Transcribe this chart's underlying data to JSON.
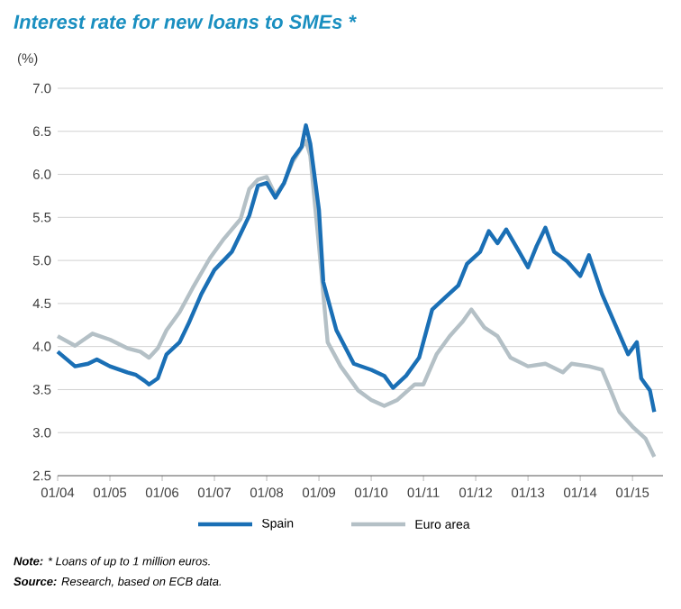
{
  "chart_data": {
    "type": "line",
    "title": "Interest rate for new loans to SMEs *",
    "ylabel": "(%)",
    "annotations": [
      "**Note:** * Loans of up to 1 million euros.",
      "**Source:** Research, based on ECB data."
    ],
    "xlim": [
      "2004-01",
      "2015-08"
    ],
    "xticks": [
      {
        "value": "2004-01",
        "label": "01/04"
      },
      {
        "value": "2005-01",
        "label": "01/05"
      },
      {
        "value": "2006-01",
        "label": "01/06"
      },
      {
        "value": "2007-01",
        "label": "01/07"
      },
      {
        "value": "2008-01",
        "label": "01/08"
      },
      {
        "value": "2009-01",
        "label": "01/09"
      },
      {
        "value": "2010-01",
        "label": "01/10"
      },
      {
        "value": "2011-01",
        "label": "01/11"
      },
      {
        "value": "2012-01",
        "label": "01/12"
      },
      {
        "value": "2013-01",
        "label": "01/13"
      },
      {
        "value": "2014-01",
        "label": "01/14"
      },
      {
        "value": "2015-01",
        "label": "01/15"
      }
    ],
    "ylim": [
      2.5,
      7.0
    ],
    "yticks": [
      2.5,
      {
        "value": 3,
        "label": "3.0"
      },
      3.5,
      {
        "value": 4,
        "label": "4.0"
      },
      4.5,
      {
        "value": 5,
        "label": "5.0"
      },
      5.5,
      {
        "value": 6,
        "label": "6.0"
      },
      6.5,
      {
        "value": 7,
        "label": "7.0"
      }
    ],
    "grid": "y",
    "legend": "bottom",
    "line_style": "solid",
    "marker": "none",
    "series": [
      {
        "name": "Spain",
        "color": "#1a6fb5",
        "x": [
          "2004-01",
          "2004-05",
          "2004-08",
          "2004-10",
          "2005-01",
          "2005-05",
          "2005-07",
          "2005-09",
          "2005-10",
          "2005-12",
          "2006-02",
          "2006-05",
          "2006-07",
          "2006-10",
          "2007-01",
          "2007-05",
          "2007-07",
          "2007-09",
          "2007-11",
          "2008-01",
          "2008-03",
          "2008-05",
          "2008-07",
          "2008-09",
          "2008-10",
          "2008-11",
          "2009-01",
          "2009-02",
          "2009-05",
          "2009-09",
          "2010-01",
          "2010-04",
          "2010-06",
          "2010-09",
          "2010-12",
          "2011-03",
          "2011-06",
          "2011-09",
          "2011-11",
          "2012-02",
          "2012-04",
          "2012-06",
          "2012-08",
          "2012-11",
          "2013-01",
          "2013-03",
          "2013-05",
          "2013-07",
          "2013-10",
          "2014-01",
          "2014-03",
          "2014-06",
          "2014-09",
          "2014-12",
          "2015-02",
          "2015-03",
          "2015-05",
          "2015-06"
        ],
        "values": [
          3.94,
          3.77,
          3.8,
          3.85,
          3.77,
          3.7,
          3.67,
          3.6,
          3.56,
          3.63,
          3.91,
          4.05,
          4.26,
          4.61,
          4.89,
          5.1,
          5.31,
          5.52,
          5.87,
          5.9,
          5.73,
          5.9,
          6.18,
          6.32,
          6.57,
          6.36,
          5.59,
          4.75,
          4.19,
          3.8,
          3.73,
          3.66,
          3.52,
          3.66,
          3.87,
          4.43,
          4.57,
          4.71,
          4.96,
          5.1,
          5.34,
          5.2,
          5.36,
          5.1,
          4.92,
          5.17,
          5.38,
          5.1,
          4.99,
          4.82,
          5.06,
          4.61,
          4.26,
          3.91,
          4.05,
          3.63,
          3.49,
          3.24
        ]
      },
      {
        "name": "Euro area",
        "color": "#b4c0c6",
        "x": [
          "2004-01",
          "2004-05",
          "2004-07",
          "2004-09",
          "2005-01",
          "2005-05",
          "2005-08",
          "2005-10",
          "2005-12",
          "2006-02",
          "2006-05",
          "2006-08",
          "2006-12",
          "2007-03",
          "2007-07",
          "2007-09",
          "2007-11",
          "2008-01",
          "2008-03",
          "2008-05",
          "2008-07",
          "2008-10",
          "2008-11",
          "2009-01",
          "2009-03",
          "2009-06",
          "2009-10",
          "2010-01",
          "2010-04",
          "2010-07",
          "2010-11",
          "2011-01",
          "2011-04",
          "2011-07",
          "2011-10",
          "2011-12",
          "2012-03",
          "2012-06",
          "2012-09",
          "2013-01",
          "2013-05",
          "2013-09",
          "2013-11",
          "2014-03",
          "2014-06",
          "2014-08",
          "2014-10",
          "2015-01",
          "2015-04",
          "2015-06"
        ],
        "values": [
          4.12,
          4.01,
          4.08,
          4.15,
          4.08,
          3.98,
          3.94,
          3.87,
          3.98,
          4.19,
          4.4,
          4.68,
          5.03,
          5.24,
          5.48,
          5.83,
          5.94,
          5.97,
          5.76,
          5.9,
          6.15,
          6.39,
          6.22,
          5.17,
          4.05,
          3.77,
          3.49,
          3.38,
          3.31,
          3.38,
          3.56,
          3.56,
          3.91,
          4.12,
          4.29,
          4.43,
          4.22,
          4.12,
          3.87,
          3.77,
          3.8,
          3.7,
          3.8,
          3.77,
          3.73,
          3.49,
          3.24,
          3.07,
          2.93,
          2.72
        ]
      }
    ]
  }
}
